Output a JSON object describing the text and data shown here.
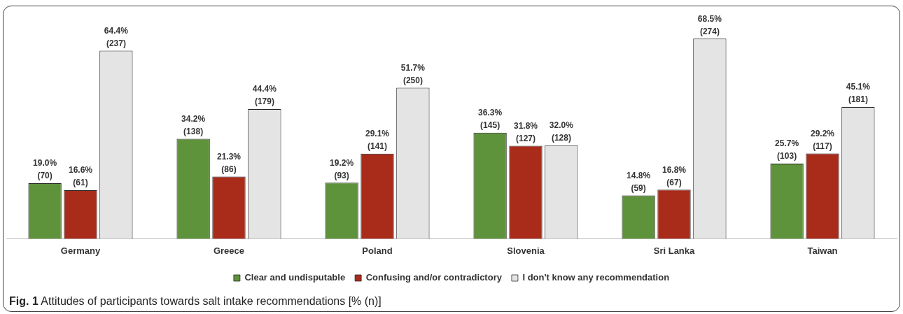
{
  "chart_data": {
    "type": "bar",
    "categories": [
      "Germany",
      "Greece",
      "Poland",
      "Slovenia",
      "Sri Lanka",
      "Taiwan"
    ],
    "series": [
      {
        "name": "Clear and undisputable",
        "color": "#5e923b",
        "values": [
          19.0,
          34.2,
          19.2,
          36.3,
          14.8,
          25.7
        ],
        "value_labels": [
          "19.0%\n(70)",
          "34.2%\n(138)",
          "19.2%\n(93)",
          "36.3%\n(145)",
          "14.8%\n(59)",
          "25.7%\n(103)"
        ]
      },
      {
        "name": "Confusing and/or contradictory",
        "color": "#a92b1a",
        "values": [
          16.6,
          21.3,
          29.1,
          31.8,
          16.8,
          29.2
        ],
        "value_labels": [
          "16.6%\n(61)",
          "21.3%\n(86)",
          "29.1%\n(141)",
          "31.8%\n(127)",
          "16.8%\n(67)",
          "29.2%\n(117)"
        ]
      },
      {
        "name": "I don't know any recommendation",
        "color": "#e4e4e4",
        "values": [
          64.4,
          44.4,
          51.7,
          32.0,
          68.5,
          45.1
        ],
        "value_labels": [
          "64.4%\n(237)",
          "44.4%\n(179)",
          "51.7%\n(250)",
          "32.0%\n(128)",
          "68.5%\n(274)",
          "45.1%\n(181)"
        ]
      }
    ],
    "tick_labels": "x",
    "grid": false,
    "legend": "bottom",
    "annotations": [
      "Fig. 1 Attitudes of participants towards salt intake recommendations [% (n)]"
    ]
  }
}
